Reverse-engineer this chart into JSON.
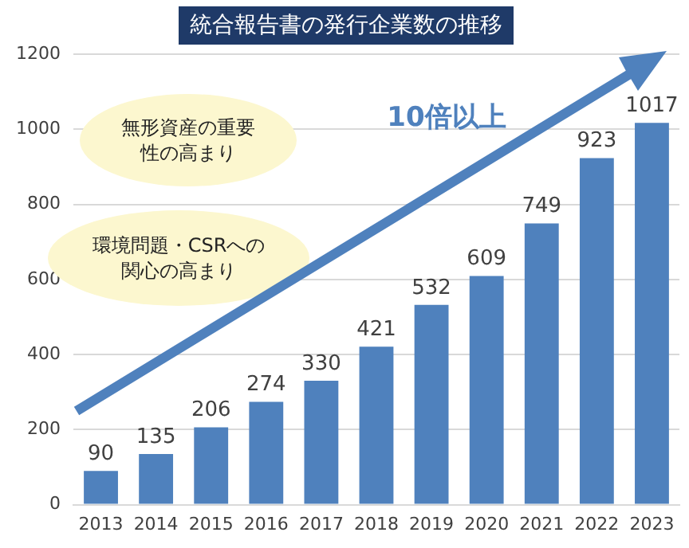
{
  "chart_data": {
    "type": "bar",
    "title": "統合報告書の発行企業数の推移",
    "categories": [
      "2013",
      "2014",
      "2015",
      "2016",
      "2017",
      "2018",
      "2019",
      "2020",
      "2021",
      "2022",
      "2023"
    ],
    "values": [
      90,
      135,
      206,
      274,
      330,
      421,
      532,
      609,
      749,
      923,
      1017
    ],
    "color": "#4f81bd",
    "ylim": [
      0,
      1200
    ],
    "yticks": [
      0,
      200,
      400,
      600,
      800,
      1000,
      1200
    ],
    "grid": "y",
    "data_labels": true,
    "annotations": [
      "無形資産の重要性の高まり",
      "環境問題・CSRへの関心の高まり",
      "10倍以上"
    ]
  }
}
